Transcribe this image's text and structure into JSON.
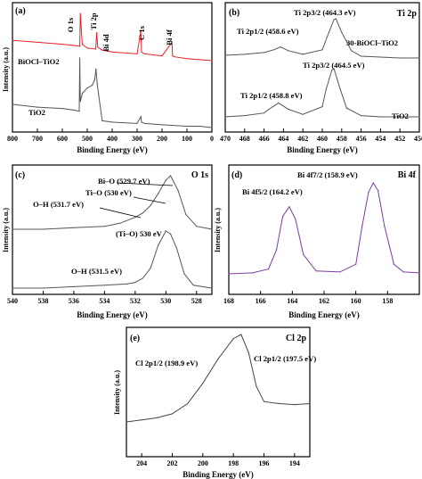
{
  "chart_data": [
    {
      "type": "line",
      "panel_label": "(a)",
      "xlabel": "Binding Energy (eV)",
      "ylabel": "Intensity (a.u.)",
      "xlim": [
        800,
        0
      ],
      "xticks": [
        800,
        700,
        600,
        500,
        400,
        300,
        200,
        100,
        0
      ],
      "grid": false,
      "series": [
        {
          "name": "BiOCl–TiO2",
          "color": "#e8202a",
          "x": [
            800,
            700,
            600,
            560,
            530,
            528,
            520,
            500,
            466,
            462,
            458,
            440,
            420,
            400,
            300,
            285,
            282,
            270,
            200,
            160,
            158,
            150,
            100,
            50,
            0
          ],
          "y": [
            64,
            62,
            60,
            59,
            58,
            92,
            60,
            56,
            55,
            72,
            57,
            54,
            53,
            52,
            50,
            74,
            52,
            50,
            48,
            62,
            48,
            47,
            45,
            44,
            43
          ]
        },
        {
          "name": "TiO2",
          "color": "#555555",
          "x": [
            800,
            700,
            600,
            560,
            532,
            530,
            528,
            520,
            500,
            480,
            470,
            465,
            460,
            455,
            440,
            400,
            300,
            285,
            282,
            270,
            200,
            100,
            50,
            0
          ],
          "y": [
            22,
            20,
            19,
            18,
            17,
            56,
            24,
            30,
            34,
            36,
            40,
            48,
            37,
            30,
            10,
            9,
            8,
            13,
            9,
            8,
            7,
            6,
            6,
            5
          ]
        }
      ],
      "annotations": [
        "O 1s",
        "Ti 2p",
        "Bi 4d",
        "C 1s",
        "Bi 4f",
        "BiOCl–TiO2",
        "TiO2"
      ]
    },
    {
      "type": "line",
      "panel_label": "(b)",
      "corner_label": "Ti 2p",
      "xlabel": "Binding Energy (eV)",
      "xlim": [
        470,
        450
      ],
      "xticks": [
        470,
        468,
        466,
        464,
        462,
        460,
        458,
        456,
        454,
        452,
        450
      ],
      "grid": false,
      "series": [
        {
          "name": "30-BiOCl–TiO2",
          "color": "#555555",
          "x": [
            470,
            468,
            466,
            465,
            464.3,
            463.5,
            462,
            460,
            459.5,
            458.8,
            458.6,
            458,
            457,
            456,
            454,
            452,
            450
          ],
          "y": [
            60,
            61,
            63,
            66,
            69,
            65,
            61,
            66,
            80,
            99,
            100,
            85,
            65,
            59,
            58,
            57,
            57
          ]
        },
        {
          "name": "TiO2",
          "color": "#555555",
          "x": [
            470,
            468,
            466,
            465.5,
            464.5,
            463.5,
            462,
            460,
            459.6,
            459,
            458.8,
            458.2,
            457.5,
            456,
            454,
            452,
            450
          ],
          "y": [
            10,
            11,
            13,
            16,
            21,
            16,
            12,
            18,
            32,
            47,
            48,
            33,
            17,
            11,
            10,
            10,
            10
          ]
        }
      ],
      "annotations": [
        "Ti 2p3/2 (464.3 eV)",
        "Ti 2p1/2 (458.6 eV)",
        "Ti 2p3/2 (464.5 eV)",
        "Ti 2p1/2 (458.8 eV)",
        "30-BiOCl–TiO2",
        "TiO2"
      ]
    },
    {
      "type": "line",
      "panel_label": "(c)",
      "corner_label": "O 1s",
      "xlabel": "Binding Energy (eV)",
      "ylabel": "Intensity (a.u.)",
      "xlim": [
        540,
        527
      ],
      "xticks": [
        540,
        538,
        536,
        534,
        532,
        530,
        528
      ],
      "grid": false,
      "series": [
        {
          "name": "BiOCl–TiO2",
          "color": "#555555",
          "x": [
            540,
            538,
            536,
            534,
            533,
            532,
            531.5,
            531,
            530.5,
            530,
            529.7,
            529.2,
            528.7,
            528,
            527
          ],
          "y": [
            62,
            62,
            63,
            64,
            66,
            70,
            73,
            78,
            86,
            95,
            98,
            88,
            72,
            64,
            62
          ]
        },
        {
          "name": "TiO2",
          "color": "#555555",
          "x": [
            540,
            538,
            536,
            534,
            532.5,
            532,
            531.5,
            531,
            530.5,
            530,
            529.7,
            529.3,
            528.8,
            528.2,
            527
          ],
          "y": [
            10,
            10,
            11,
            12,
            13,
            14,
            17,
            24,
            40,
            50,
            48,
            38,
            20,
            12,
            10
          ]
        }
      ],
      "annotations": [
        "Bi–O (529.7 eV)",
        "Ti–O (530 eV)",
        "O–H (531.7 eV)",
        "(Ti–O) 530 eV",
        "O–H (531.5 eV)"
      ]
    },
    {
      "type": "line",
      "panel_label": "(d)",
      "corner_label": "Bi 4f",
      "xlabel": "Binding Energy (eV)",
      "ylabel": "Intensity (a.u.)",
      "xlim": [
        168,
        156
      ],
      "xticks": [
        168,
        166,
        164,
        162,
        160,
        158
      ],
      "grid": false,
      "series": [
        {
          "name": "Bi 4f",
          "color": "#7a3fa0",
          "x": [
            168,
            166.5,
            165.5,
            165,
            164.6,
            164.2,
            163.8,
            163.3,
            162.5,
            161,
            160,
            159.6,
            159.2,
            158.9,
            158.6,
            158.2,
            157.6,
            157,
            156
          ],
          "y": [
            5,
            6,
            10,
            30,
            65,
            75,
            62,
            25,
            8,
            7,
            15,
            55,
            90,
            100,
            92,
            55,
            15,
            7,
            6
          ]
        }
      ],
      "annotations": [
        "Bi 4f7/2 (158.9 eV)",
        "Bi 4f5/2 (164.2 eV)",
        "Bi 4f"
      ]
    },
    {
      "type": "line",
      "panel_label": "(e)",
      "corner_label": "Cl 2p",
      "xlabel": "Binding Energy (eV)",
      "ylabel": "Intensity (a.u.)",
      "xlim": [
        205,
        193
      ],
      "xticks": [
        204,
        202,
        200,
        198,
        196,
        194
      ],
      "grid": false,
      "series": [
        {
          "name": "Cl 2p",
          "color": "#444444",
          "x": [
            205,
            204,
            203,
            202,
            201,
            200,
            199.5,
            199,
            198.5,
            198,
            197.5,
            197,
            196.5,
            196,
            195,
            194,
            193
          ],
          "y": [
            10,
            12,
            14,
            18,
            28,
            48,
            60,
            72,
            82,
            92,
            96,
            78,
            45,
            30,
            28,
            27,
            28
          ]
        }
      ],
      "annotations": [
        "Cl 2p1/2 (198.9 eV)",
        "Cl 2p1/2 (197.5 eV)",
        "Cl 2p"
      ]
    }
  ]
}
